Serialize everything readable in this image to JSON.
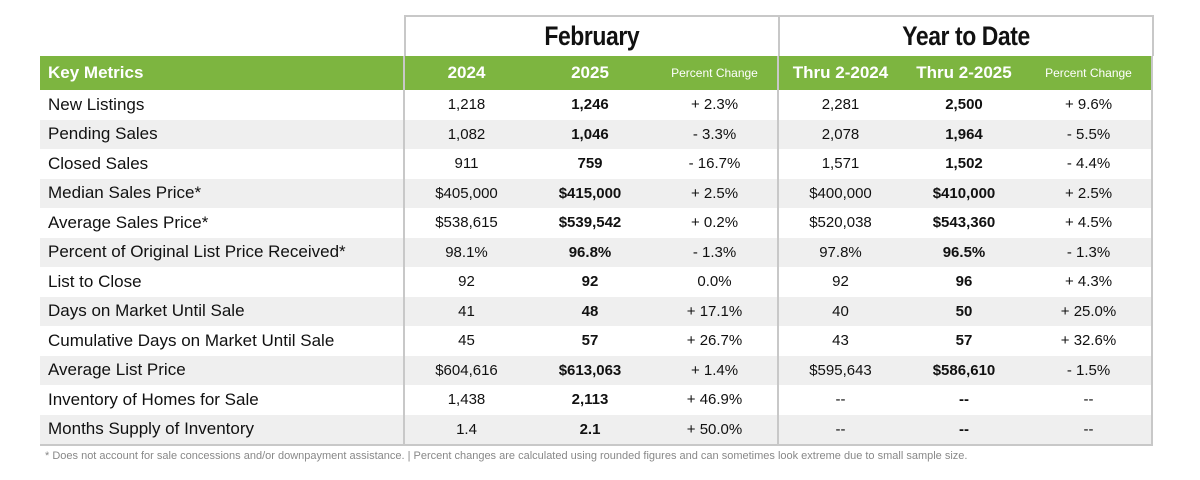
{
  "groups": {
    "february": "February",
    "ytd": "Year to Date"
  },
  "header": {
    "label": "Key Metrics",
    "cols": [
      "2024",
      "2025",
      "Percent Change",
      "Thru 2-2024",
      "Thru 2-2025",
      "Percent Change"
    ]
  },
  "rows": [
    {
      "label": "New Listings",
      "v": [
        "1,218",
        "1,246",
        "+ 2.3%",
        "2,281",
        "2,500",
        "+ 9.6%"
      ]
    },
    {
      "label": "Pending Sales",
      "v": [
        "1,082",
        "1,046",
        "- 3.3%",
        "2,078",
        "1,964",
        "- 5.5%"
      ]
    },
    {
      "label": "Closed Sales",
      "v": [
        "911",
        "759",
        "- 16.7%",
        "1,571",
        "1,502",
        "- 4.4%"
      ]
    },
    {
      "label": "Median Sales Price*",
      "v": [
        "$405,000",
        "$415,000",
        "+ 2.5%",
        "$400,000",
        "$410,000",
        "+ 2.5%"
      ]
    },
    {
      "label": "Average Sales Price*",
      "v": [
        "$538,615",
        "$539,542",
        "+ 0.2%",
        "$520,038",
        "$543,360",
        "+ 4.5%"
      ]
    },
    {
      "label": "Percent of Original List Price Received*",
      "v": [
        "98.1%",
        "96.8%",
        "- 1.3%",
        "97.8%",
        "96.5%",
        "- 1.3%"
      ]
    },
    {
      "label": "List to Close",
      "v": [
        "92",
        "92",
        "0.0%",
        "92",
        "96",
        "+ 4.3%"
      ]
    },
    {
      "label": "Days on Market Until Sale",
      "v": [
        "41",
        "48",
        "+ 17.1%",
        "40",
        "50",
        "+ 25.0%"
      ]
    },
    {
      "label": "Cumulative Days on Market Until Sale",
      "v": [
        "45",
        "57",
        "+ 26.7%",
        "43",
        "57",
        "+ 32.6%"
      ]
    },
    {
      "label": "Average List Price",
      "v": [
        "$604,616",
        "$613,063",
        "+ 1.4%",
        "$595,643",
        "$586,610",
        "- 1.5%"
      ]
    },
    {
      "label": "Inventory of Homes for Sale",
      "v": [
        "1,438",
        "2,113",
        "+ 46.9%",
        "--",
        "--",
        "--"
      ]
    },
    {
      "label": "Months Supply of Inventory",
      "v": [
        "1.4",
        "2.1",
        "+ 50.0%",
        "--",
        "--",
        "--"
      ]
    }
  ],
  "footnote": "* Does not account for sale concessions and/or downpayment assistance.  |  Percent changes are calculated using rounded figures and can sometimes look extreme due to small sample size.",
  "colors": {
    "header_green": "#7db540",
    "row_alt": "#efefef",
    "border": "#c8c8c8"
  }
}
